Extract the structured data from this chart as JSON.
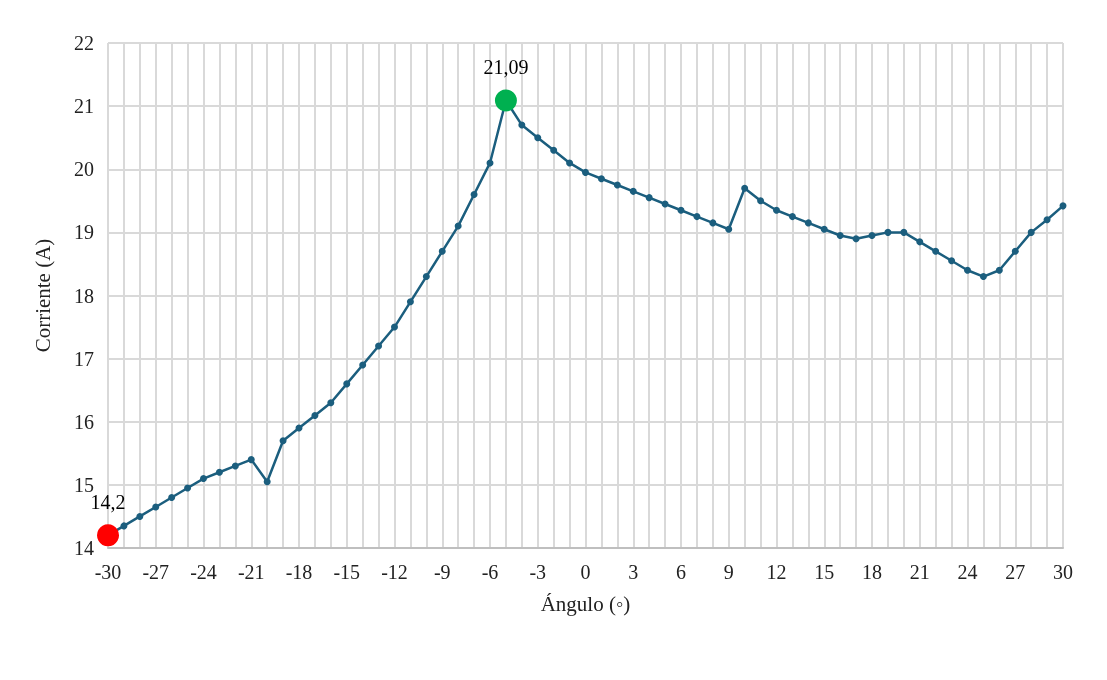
{
  "chart_data": {
    "type": "line",
    "xlabel": "Ángulo (◦)",
    "ylabel": "Corriente (A)",
    "categories": [
      "-30",
      null,
      null,
      "-27",
      null,
      null,
      "-24",
      null,
      null,
      "-21",
      null,
      null,
      "-18",
      null,
      null,
      "-15",
      null,
      null,
      "-12",
      null,
      null,
      "-9",
      null,
      null,
      "-6",
      null,
      null,
      "-3",
      null,
      null,
      "0",
      null,
      null,
      "3",
      null,
      null,
      "6",
      null,
      null,
      "9",
      null,
      null,
      "12",
      null,
      null,
      "15",
      null,
      null,
      "18",
      null,
      null,
      "21",
      null,
      null,
      "24",
      null,
      null,
      "27",
      null,
      null,
      "30"
    ],
    "series": [
      {
        "color": "#1b5e7e",
        "marker": "circle",
        "values": [
          14.2,
          14.35,
          14.5,
          14.65,
          14.8,
          14.95,
          15.1,
          15.2,
          15.3,
          15.4,
          15.05,
          15.7,
          15.9,
          16.1,
          16.3,
          16.6,
          16.9,
          17.2,
          17.5,
          17.9,
          18.3,
          18.7,
          19.1,
          19.6,
          20.1,
          21.09,
          20.7,
          20.5,
          20.3,
          20.1,
          19.95,
          19.85,
          19.75,
          19.65,
          19.55,
          19.45,
          19.35,
          19.25,
          19.15,
          19.05,
          19.7,
          19.5,
          19.35,
          19.25,
          19.15,
          19.05,
          18.95,
          18.9,
          18.95,
          19.0,
          19.0,
          18.85,
          18.7,
          18.55,
          18.4,
          18.3,
          18.4,
          18.7,
          19.0,
          19.2,
          19.42
        ],
        "colors": [
          "#ff0000",
          null,
          null,
          null,
          null,
          null,
          null,
          null,
          null,
          null,
          null,
          null,
          null,
          null,
          null,
          null,
          null,
          null,
          null,
          null,
          null,
          null,
          null,
          null,
          null,
          "#00b050",
          null,
          null,
          null,
          null,
          null,
          null,
          null,
          null,
          null,
          null,
          null,
          null,
          null,
          null,
          null,
          null,
          null,
          null,
          null,
          null,
          null,
          null,
          null,
          null,
          null,
          null,
          null,
          null,
          null,
          null,
          null,
          null,
          null,
          null,
          null
        ],
        "value_labels": [
          "14,2",
          null,
          null,
          null,
          null,
          null,
          null,
          null,
          null,
          null,
          null,
          null,
          null,
          null,
          null,
          null,
          null,
          null,
          null,
          null,
          null,
          null,
          null,
          null,
          null,
          "21,09",
          null,
          null,
          null,
          null,
          null,
          null,
          null,
          null,
          null,
          null,
          null,
          null,
          null,
          null,
          null,
          null,
          null,
          null,
          null,
          null,
          null,
          null,
          null,
          null,
          null,
          null,
          null,
          null,
          null,
          null,
          null,
          null,
          null,
          null,
          null
        ]
      }
    ],
    "ylim": [
      14,
      22
    ],
    "yticks": [
      14,
      15,
      16,
      17,
      18,
      19,
      20,
      21,
      22
    ],
    "grid": true
  }
}
